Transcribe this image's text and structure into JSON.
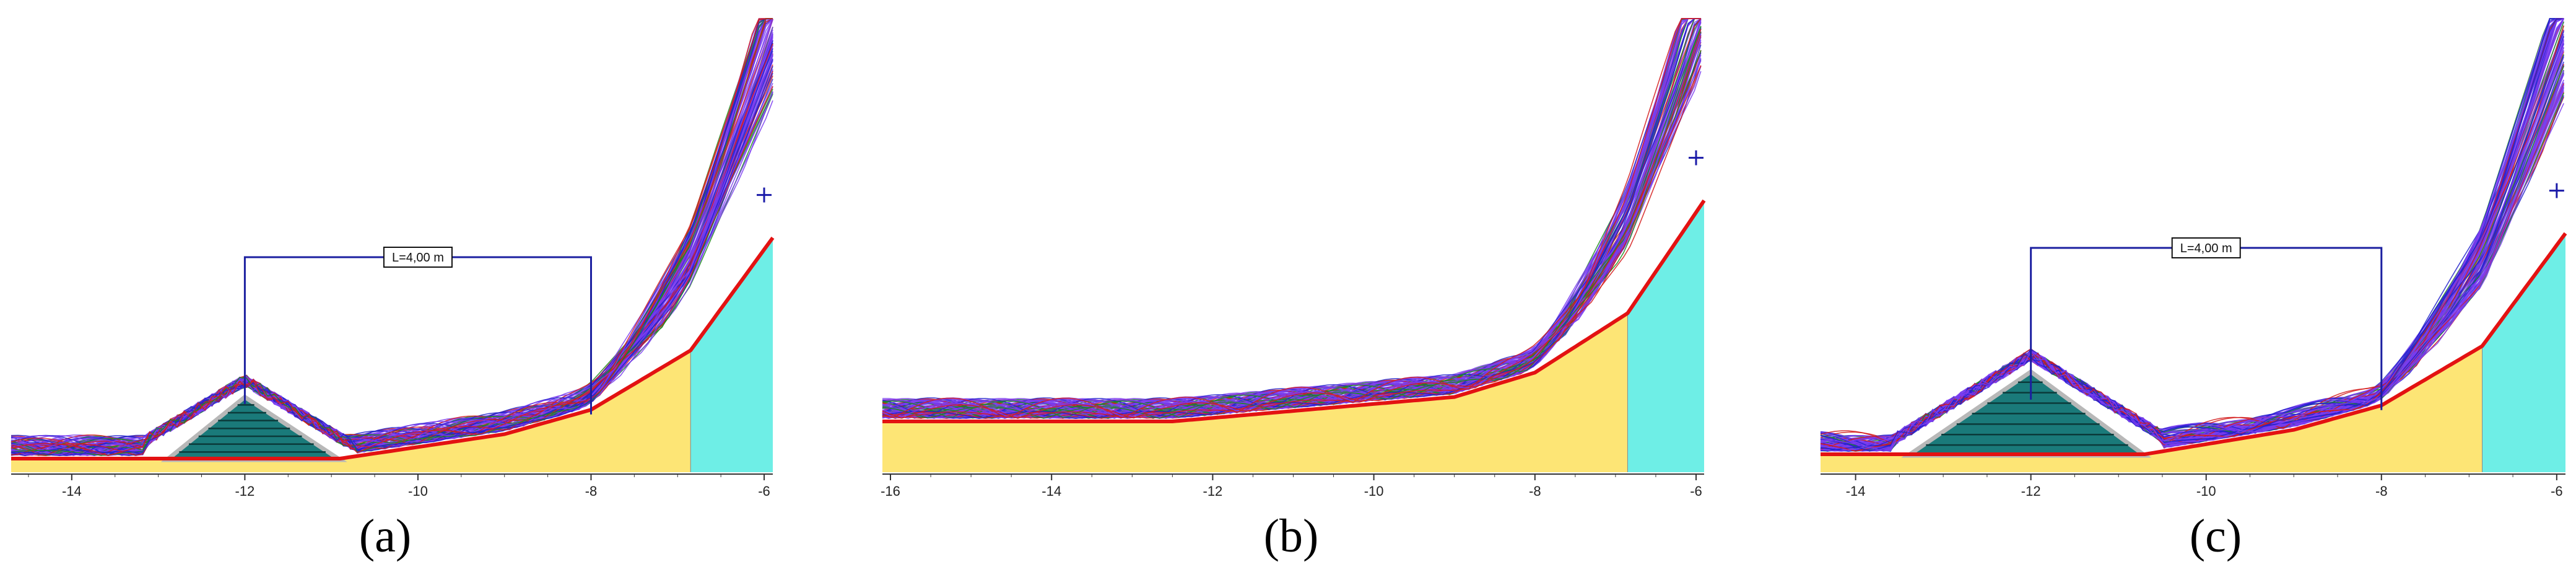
{
  "panels": [
    {
      "id": "a",
      "label": "(a)",
      "label_letter": "a",
      "xlim": [
        -14.7,
        -5.9
      ],
      "x_ticks": [
        -14,
        -12,
        -10,
        -8,
        -6
      ],
      "x_tick_labels": [
        "-14",
        "-12",
        "-10",
        "-8",
        "-6"
      ],
      "structure": {
        "type": "triangular-breakwater",
        "toe_left": -12.9,
        "crest": -12.0,
        "toe_right": -10.9,
        "crest_height": 0.9
      },
      "dimension": {
        "text": "L=4,00 m",
        "from": -12.0,
        "to": -8.0
      },
      "beach_toe_x": -6.85,
      "cross_marker_x": -6.0
    },
    {
      "id": "b",
      "label": "(b)",
      "label_letter": "b",
      "xlim": [
        -16.1,
        -5.9
      ],
      "x_ticks": [
        -16,
        -14,
        -12,
        -10,
        -8,
        -6
      ],
      "x_tick_labels": [
        "-16",
        "-14",
        "-12",
        "-10",
        "-8",
        "-6"
      ],
      "structure": null,
      "dimension": null,
      "beach_toe_x": -6.85,
      "cross_marker_x": -6.0
    },
    {
      "id": "c",
      "label": "(c)",
      "label_letter": "c",
      "xlim": [
        -14.4,
        -5.9
      ],
      "x_ticks": [
        -14,
        -12,
        -10,
        -8,
        -6
      ],
      "x_tick_labels": [
        "-14",
        "-12",
        "-10",
        "-8",
        "-6"
      ],
      "structure": {
        "type": "wide-breakwater",
        "toe_left": -13.4,
        "crest": -12.0,
        "toe_right": -10.7,
        "crest_height": 1.2
      },
      "dimension": {
        "text": "L=4,00 m",
        "from": -12.0,
        "to": -8.0
      },
      "beach_toe_x": -6.85,
      "cross_marker_x": -6.0
    }
  ],
  "chart_data": [
    {
      "type": "line",
      "panel": "a",
      "x_tick_labels": [
        "-14",
        "-12",
        "-10",
        "-8",
        "-6"
      ],
      "annotation": "L=4,00 m"
    },
    {
      "type": "line",
      "panel": "b",
      "x_tick_labels": [
        "-16",
        "-14",
        "-12",
        "-10",
        "-8",
        "-6"
      ]
    },
    {
      "type": "line",
      "panel": "c",
      "x_tick_labels": [
        "-14",
        "-12",
        "-10",
        "-8",
        "-6"
      ],
      "annotation": "L=4,00 m"
    }
  ],
  "colors": {
    "beach": "#fde575",
    "water": "#6eeee6",
    "breakwater": "#1a7a7a",
    "breakwater_stripe": "#0b3a3a",
    "breakwater_border": "#b8b8b8",
    "profile_red": "#e31212",
    "wave_purple": "#7a3cf0",
    "wave_blue": "#2222cc",
    "wave_green": "#1c8a1c",
    "wave_red": "#d41c1c",
    "dimension": "#1b1fa0",
    "axis": "#333333",
    "marker": "#1a1aa8"
  }
}
